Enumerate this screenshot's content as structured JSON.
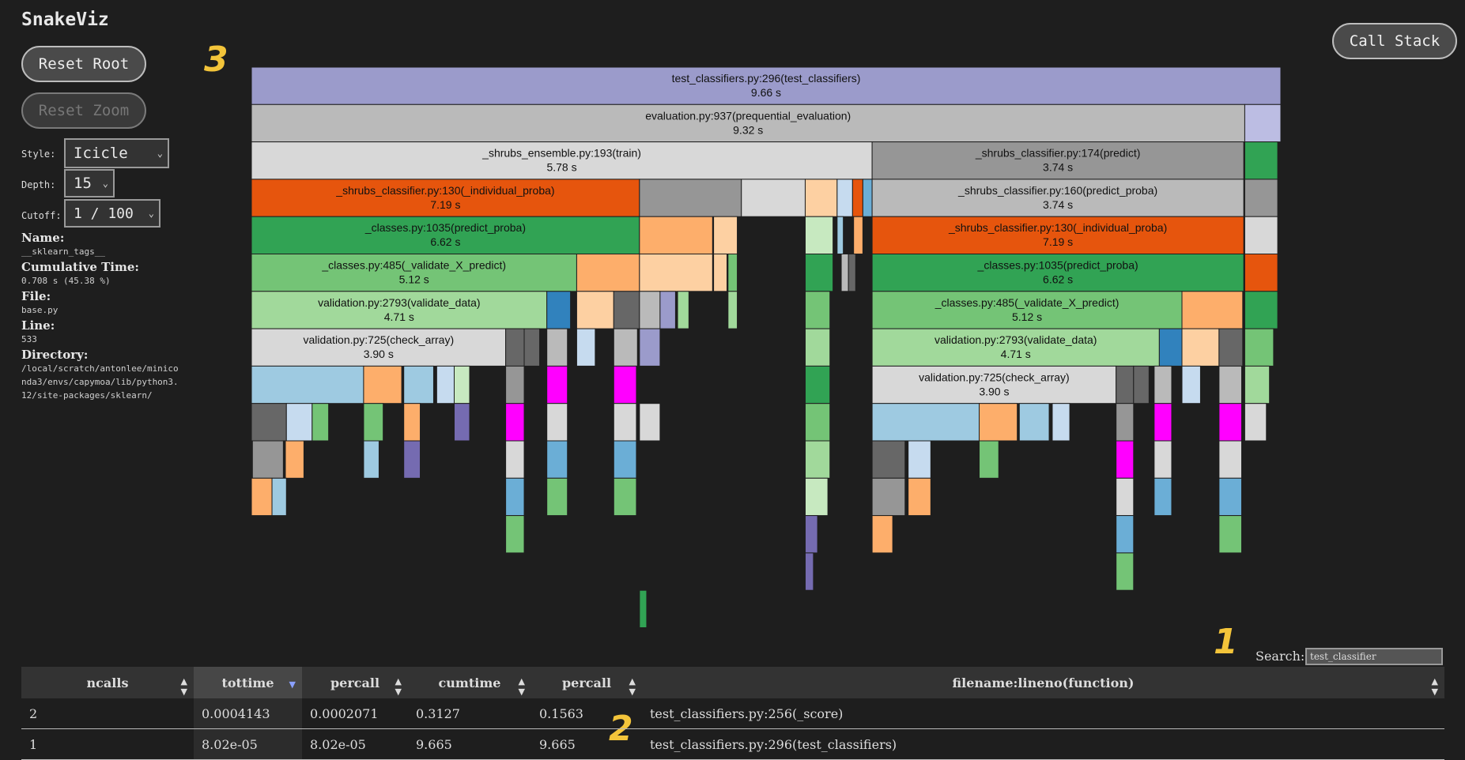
{
  "app": {
    "title": "SnakeViz"
  },
  "buttons": {
    "reset_root": "Reset Root",
    "reset_zoom": "Reset Zoom",
    "call_stack": "Call Stack"
  },
  "controls": {
    "style_label": "Style:",
    "style_value": "Icicle",
    "depth_label": "Depth:",
    "depth_value": "15",
    "cutoff_label": "Cutoff:",
    "cutoff_value": "1 / 100"
  },
  "info": {
    "name_label": "Name:",
    "name_value": "__sklearn_tags__",
    "cumtime_label": "Cumulative Time:",
    "cumtime_value": "0.708 s (45.38 %)",
    "file_label": "File:",
    "file_value": "base.py",
    "line_label": "Line:",
    "line_value": "533",
    "dir_label": "Directory:",
    "dir_value": "/local/scratch/antonlee/miniconda3/envs/capymoa/lib/python3.12/site-packages/sklearn/"
  },
  "annotations": {
    "a1": "1",
    "a2": "2",
    "a3": "3"
  },
  "search": {
    "label": "Search:",
    "value": "test_classifier"
  },
  "table": {
    "headers": [
      "ncalls",
      "tottime",
      "percall",
      "cumtime",
      "percall",
      "filename:lineno(function)"
    ],
    "rows": [
      [
        "2",
        "0.0004143",
        "0.0002071",
        "0.3127",
        "0.1563",
        "test_classifiers.py:256(_score)"
      ],
      [
        "1",
        "8.02e-05",
        "8.02e-05",
        "9.665",
        "9.665",
        "test_classifiers.py:296(test_classifiers)"
      ]
    ]
  },
  "chart_data": {
    "type": "icicle",
    "total_time_s": 9.66,
    "colors": {
      "purple": "#9b9bcb",
      "lilac": "#bcbde3",
      "grey": "#bababa",
      "lightgrey": "#d8d8d8",
      "darkgrey": "#969696",
      "dimgrey": "#676767",
      "orange": "#e6550d",
      "lightorange": "#fdae6b",
      "peach": "#fdd0a2",
      "green": "#31a354",
      "midgreen": "#74c476",
      "lightgreen": "#a1d99b",
      "palegreen": "#c7e9c0",
      "blue": "#3182bd",
      "lightblue": "#9ecae1",
      "paleblue": "#c6dbef",
      "magenta": "#ff00ff",
      "slate": "#6baed6",
      "violet": "#756bb1"
    },
    "nodes": [
      {
        "depth": 0,
        "x0": 0,
        "x1": 1,
        "fill": "purple",
        "label": "test_classifiers.py:296(test_classifiers)",
        "time": "9.66 s"
      },
      {
        "depth": 1,
        "x0": 0,
        "x1": 0.965,
        "fill": "grey",
        "label": "evaluation.py:937(prequential_evaluation)",
        "time": "9.32 s"
      },
      {
        "depth": 1,
        "x0": 0.965,
        "x1": 1,
        "fill": "lilac"
      },
      {
        "depth": 2,
        "x0": 0,
        "x1": 0.603,
        "fill": "lightgrey",
        "label": "_shrubs_ensemble.py:193(train)",
        "time": "5.78 s"
      },
      {
        "depth": 2,
        "x0": 0.603,
        "x1": 0.964,
        "fill": "darkgrey",
        "label": "_shrubs_classifier.py:174(predict)",
        "time": "3.74 s"
      },
      {
        "depth": 2,
        "x0": 0.965,
        "x1": 0.997,
        "fill": "green"
      },
      {
        "depth": 3,
        "x0": 0,
        "x1": 0.377,
        "fill": "orange",
        "label": "_shrubs_classifier.py:130(_individual_proba)",
        "time": "7.19 s"
      },
      {
        "depth": 3,
        "x0": 0.377,
        "x1": 0.476,
        "fill": "darkgrey"
      },
      {
        "depth": 3,
        "x0": 0.476,
        "x1": 0.538,
        "fill": "lightgrey"
      },
      {
        "depth": 3,
        "x0": 0.538,
        "x1": 0.569,
        "fill": "peach"
      },
      {
        "depth": 3,
        "x0": 0.569,
        "x1": 0.584,
        "fill": "paleblue"
      },
      {
        "depth": 3,
        "x0": 0.584,
        "x1": 0.594,
        "fill": "orange"
      },
      {
        "depth": 3,
        "x0": 0.594,
        "x1": 0.603,
        "fill": "slate"
      },
      {
        "depth": 3,
        "x0": 0.603,
        "x1": 0.964,
        "fill": "grey",
        "label": "_shrubs_classifier.py:160(predict_proba)",
        "time": "3.74 s"
      },
      {
        "depth": 3,
        "x0": 0.965,
        "x1": 0.997,
        "fill": "darkgrey"
      },
      {
        "depth": 4,
        "x0": 0,
        "x1": 0.377,
        "fill": "green",
        "label": "_classes.py:1035(predict_proba)",
        "time": "6.62 s"
      },
      {
        "depth": 4,
        "x0": 0.377,
        "x1": 0.448,
        "fill": "lightorange"
      },
      {
        "depth": 4,
        "x0": 0.449,
        "x1": 0.472,
        "fill": "peach"
      },
      {
        "depth": 4,
        "x0": 0.538,
        "x1": 0.565,
        "fill": "palegreen"
      },
      {
        "depth": 4,
        "x0": 0.569,
        "x1": 0.575,
        "fill": "lightblue"
      },
      {
        "depth": 4,
        "x0": 0.585,
        "x1": 0.594,
        "fill": "lightorange"
      },
      {
        "depth": 4,
        "x0": 0.603,
        "x1": 0.964,
        "fill": "orange",
        "label": "_shrubs_classifier.py:130(_individual_proba)",
        "time": "7.19 s"
      },
      {
        "depth": 4,
        "x0": 0.965,
        "x1": 0.997,
        "fill": "lightgrey"
      },
      {
        "depth": 5,
        "x0": 0,
        "x1": 0.316,
        "fill": "midgreen",
        "label": "_classes.py:485(_validate_X_predict)",
        "time": "5.12 s"
      },
      {
        "depth": 5,
        "x0": 0.316,
        "x1": 0.377,
        "fill": "lightorange"
      },
      {
        "depth": 5,
        "x0": 0.377,
        "x1": 0.448,
        "fill": "peach"
      },
      {
        "depth": 5,
        "x0": 0.449,
        "x1": 0.462,
        "fill": "peach"
      },
      {
        "depth": 5,
        "x0": 0.463,
        "x1": 0.472,
        "fill": "midgreen"
      },
      {
        "depth": 5,
        "x0": 0.538,
        "x1": 0.565,
        "fill": "green"
      },
      {
        "depth": 5,
        "x0": 0.573,
        "x1": 0.58,
        "fill": "grey"
      },
      {
        "depth": 5,
        "x0": 0.58,
        "x1": 0.587,
        "fill": "dimgrey"
      },
      {
        "depth": 5,
        "x0": 0.603,
        "x1": 0.964,
        "fill": "green",
        "label": "_classes.py:1035(predict_proba)",
        "time": "6.62 s"
      },
      {
        "depth": 5,
        "x0": 0.965,
        "x1": 0.997,
        "fill": "orange"
      },
      {
        "depth": 6,
        "x0": 0,
        "x1": 0.287,
        "fill": "lightgreen",
        "label": "validation.py:2793(validate_data)",
        "time": "4.71 s"
      },
      {
        "depth": 6,
        "x0": 0.287,
        "x1": 0.31,
        "fill": "blue"
      },
      {
        "depth": 6,
        "x0": 0.316,
        "x1": 0.352,
        "fill": "peach"
      },
      {
        "depth": 6,
        "x0": 0.352,
        "x1": 0.377,
        "fill": "dimgrey"
      },
      {
        "depth": 6,
        "x0": 0.377,
        "x1": 0.397,
        "fill": "grey"
      },
      {
        "depth": 6,
        "x0": 0.397,
        "x1": 0.412,
        "fill": "purple"
      },
      {
        "depth": 6,
        "x0": 0.414,
        "x1": 0.425,
        "fill": "lightgreen"
      },
      {
        "depth": 6,
        "x0": 0.463,
        "x1": 0.472,
        "fill": "lightgreen"
      },
      {
        "depth": 6,
        "x0": 0.538,
        "x1": 0.562,
        "fill": "midgreen"
      },
      {
        "depth": 6,
        "x0": 0.603,
        "x1": 0.904,
        "fill": "midgreen",
        "label": "_classes.py:485(_validate_X_predict)",
        "time": "5.12 s"
      },
      {
        "depth": 6,
        "x0": 0.904,
        "x1": 0.963,
        "fill": "lightorange"
      },
      {
        "depth": 6,
        "x0": 0.965,
        "x1": 0.997,
        "fill": "green"
      },
      {
        "depth": 7,
        "x0": 0,
        "x1": 0.247,
        "fill": "lightgrey",
        "label": "validation.py:725(check_array)",
        "time": "3.90 s"
      },
      {
        "depth": 7,
        "x0": 0.247,
        "x1": 0.265,
        "fill": "dimgrey"
      },
      {
        "depth": 7,
        "x0": 0.265,
        "x1": 0.28,
        "fill": "dimgrey"
      },
      {
        "depth": 7,
        "x0": 0.287,
        "x1": 0.307,
        "fill": "grey"
      },
      {
        "depth": 7,
        "x0": 0.316,
        "x1": 0.334,
        "fill": "paleblue"
      },
      {
        "depth": 7,
        "x0": 0.352,
        "x1": 0.375,
        "fill": "grey"
      },
      {
        "depth": 7,
        "x0": 0.377,
        "x1": 0.397,
        "fill": "purple"
      },
      {
        "depth": 7,
        "x0": 0.538,
        "x1": 0.562,
        "fill": "lightgreen"
      },
      {
        "depth": 7,
        "x0": 0.603,
        "x1": 0.882,
        "fill": "lightgreen",
        "label": "validation.py:2793(validate_data)",
        "time": "4.71 s"
      },
      {
        "depth": 7,
        "x0": 0.882,
        "x1": 0.904,
        "fill": "blue"
      },
      {
        "depth": 7,
        "x0": 0.904,
        "x1": 0.94,
        "fill": "peach"
      },
      {
        "depth": 7,
        "x0": 0.94,
        "x1": 0.963,
        "fill": "dimgrey"
      },
      {
        "depth": 7,
        "x0": 0.965,
        "x1": 0.993,
        "fill": "midgreen"
      },
      {
        "depth": 8,
        "x0": 0,
        "x1": 0.109,
        "fill": "lightblue"
      },
      {
        "depth": 8,
        "x0": 0.109,
        "x1": 0.146,
        "fill": "lightorange"
      },
      {
        "depth": 8,
        "x0": 0.148,
        "x1": 0.177,
        "fill": "lightblue"
      },
      {
        "depth": 8,
        "x0": 0.18,
        "x1": 0.197,
        "fill": "paleblue"
      },
      {
        "depth": 8,
        "x0": 0.197,
        "x1": 0.212,
        "fill": "palegreen"
      },
      {
        "depth": 8,
        "x0": 0.247,
        "x1": 0.265,
        "fill": "darkgrey"
      },
      {
        "depth": 8,
        "x0": 0.287,
        "x1": 0.307,
        "fill": "magenta"
      },
      {
        "depth": 8,
        "x0": 0.352,
        "x1": 0.374,
        "fill": "magenta"
      },
      {
        "depth": 8,
        "x0": 0.538,
        "x1": 0.562,
        "fill": "green"
      },
      {
        "depth": 8,
        "x0": 0.603,
        "x1": 0.84,
        "fill": "lightgrey",
        "label": "validation.py:725(check_array)",
        "time": "3.90 s"
      },
      {
        "depth": 8,
        "x0": 0.84,
        "x1": 0.857,
        "fill": "dimgrey"
      },
      {
        "depth": 8,
        "x0": 0.857,
        "x1": 0.872,
        "fill": "dimgrey"
      },
      {
        "depth": 8,
        "x0": 0.877,
        "x1": 0.894,
        "fill": "grey"
      },
      {
        "depth": 8,
        "x0": 0.904,
        "x1": 0.922,
        "fill": "paleblue"
      },
      {
        "depth": 8,
        "x0": 0.94,
        "x1": 0.962,
        "fill": "grey"
      },
      {
        "depth": 8,
        "x0": 0.965,
        "x1": 0.989,
        "fill": "lightgreen"
      },
      {
        "depth": 9,
        "x0": 0,
        "x1": 0.034,
        "fill": "dimgrey"
      },
      {
        "depth": 9,
        "x0": 0.034,
        "x1": 0.059,
        "fill": "paleblue"
      },
      {
        "depth": 9,
        "x0": 0.059,
        "x1": 0.075,
        "fill": "midgreen"
      },
      {
        "depth": 9,
        "x0": 0.109,
        "x1": 0.128,
        "fill": "midgreen"
      },
      {
        "depth": 9,
        "x0": 0.148,
        "x1": 0.164,
        "fill": "lightorange"
      },
      {
        "depth": 9,
        "x0": 0.197,
        "x1": 0.212,
        "fill": "violet"
      },
      {
        "depth": 9,
        "x0": 0.247,
        "x1": 0.265,
        "fill": "magenta"
      },
      {
        "depth": 9,
        "x0": 0.287,
        "x1": 0.307,
        "fill": "lightgrey"
      },
      {
        "depth": 9,
        "x0": 0.352,
        "x1": 0.374,
        "fill": "lightgrey"
      },
      {
        "depth": 9,
        "x0": 0.377,
        "x1": 0.397,
        "fill": "lightgrey"
      },
      {
        "depth": 9,
        "x0": 0.538,
        "x1": 0.562,
        "fill": "midgreen"
      },
      {
        "depth": 9,
        "x0": 0.603,
        "x1": 0.707,
        "fill": "lightblue"
      },
      {
        "depth": 9,
        "x0": 0.707,
        "x1": 0.744,
        "fill": "lightorange"
      },
      {
        "depth": 9,
        "x0": 0.746,
        "x1": 0.775,
        "fill": "lightblue"
      },
      {
        "depth": 9,
        "x0": 0.778,
        "x1": 0.795,
        "fill": "paleblue"
      },
      {
        "depth": 9,
        "x0": 0.84,
        "x1": 0.857,
        "fill": "darkgrey"
      },
      {
        "depth": 9,
        "x0": 0.877,
        "x1": 0.894,
        "fill": "magenta"
      },
      {
        "depth": 9,
        "x0": 0.94,
        "x1": 0.962,
        "fill": "magenta"
      },
      {
        "depth": 9,
        "x0": 0.965,
        "x1": 0.986,
        "fill": "lightgrey"
      },
      {
        "depth": 10,
        "x0": 0.001,
        "x1": 0.031,
        "fill": "darkgrey"
      },
      {
        "depth": 10,
        "x0": 0.033,
        "x1": 0.051,
        "fill": "lightorange"
      },
      {
        "depth": 10,
        "x0": 0.109,
        "x1": 0.124,
        "fill": "lightblue"
      },
      {
        "depth": 10,
        "x0": 0.148,
        "x1": 0.164,
        "fill": "violet"
      },
      {
        "depth": 10,
        "x0": 0.247,
        "x1": 0.265,
        "fill": "lightgrey"
      },
      {
        "depth": 10,
        "x0": 0.287,
        "x1": 0.307,
        "fill": "slate"
      },
      {
        "depth": 10,
        "x0": 0.352,
        "x1": 0.374,
        "fill": "slate"
      },
      {
        "depth": 10,
        "x0": 0.538,
        "x1": 0.562,
        "fill": "lightgreen"
      },
      {
        "depth": 10,
        "x0": 0.603,
        "x1": 0.635,
        "fill": "dimgrey"
      },
      {
        "depth": 10,
        "x0": 0.638,
        "x1": 0.66,
        "fill": "paleblue"
      },
      {
        "depth": 10,
        "x0": 0.707,
        "x1": 0.726,
        "fill": "midgreen"
      },
      {
        "depth": 10,
        "x0": 0.84,
        "x1": 0.857,
        "fill": "magenta"
      },
      {
        "depth": 10,
        "x0": 0.877,
        "x1": 0.894,
        "fill": "lightgrey"
      },
      {
        "depth": 10,
        "x0": 0.94,
        "x1": 0.962,
        "fill": "lightgrey"
      },
      {
        "depth": 11,
        "x0": 0,
        "x1": 0.02,
        "fill": "lightorange"
      },
      {
        "depth": 11,
        "x0": 0.02,
        "x1": 0.034,
        "fill": "lightblue"
      },
      {
        "depth": 11,
        "x0": 0.247,
        "x1": 0.265,
        "fill": "slate"
      },
      {
        "depth": 11,
        "x0": 0.287,
        "x1": 0.307,
        "fill": "midgreen"
      },
      {
        "depth": 11,
        "x0": 0.352,
        "x1": 0.374,
        "fill": "midgreen"
      },
      {
        "depth": 11,
        "x0": 0.538,
        "x1": 0.56,
        "fill": "palegreen"
      },
      {
        "depth": 11,
        "x0": 0.603,
        "x1": 0.635,
        "fill": "darkgrey"
      },
      {
        "depth": 11,
        "x0": 0.638,
        "x1": 0.66,
        "fill": "lightorange"
      },
      {
        "depth": 11,
        "x0": 0.84,
        "x1": 0.857,
        "fill": "lightgrey"
      },
      {
        "depth": 11,
        "x0": 0.877,
        "x1": 0.894,
        "fill": "slate"
      },
      {
        "depth": 11,
        "x0": 0.94,
        "x1": 0.962,
        "fill": "slate"
      },
      {
        "depth": 12,
        "x0": 0.247,
        "x1": 0.265,
        "fill": "midgreen"
      },
      {
        "depth": 12,
        "x0": 0.538,
        "x1": 0.55,
        "fill": "violet"
      },
      {
        "depth": 12,
        "x0": 0.603,
        "x1": 0.623,
        "fill": "lightorange"
      },
      {
        "depth": 12,
        "x0": 0.84,
        "x1": 0.857,
        "fill": "slate"
      },
      {
        "depth": 12,
        "x0": 0.94,
        "x1": 0.962,
        "fill": "midgreen"
      },
      {
        "depth": 13,
        "x0": 0.538,
        "x1": 0.546,
        "fill": "violet"
      },
      {
        "depth": 13,
        "x0": 0.84,
        "x1": 0.857,
        "fill": "midgreen"
      },
      {
        "depth": 14,
        "x0": 0.377,
        "x1": 0.384,
        "fill": "green"
      }
    ]
  }
}
